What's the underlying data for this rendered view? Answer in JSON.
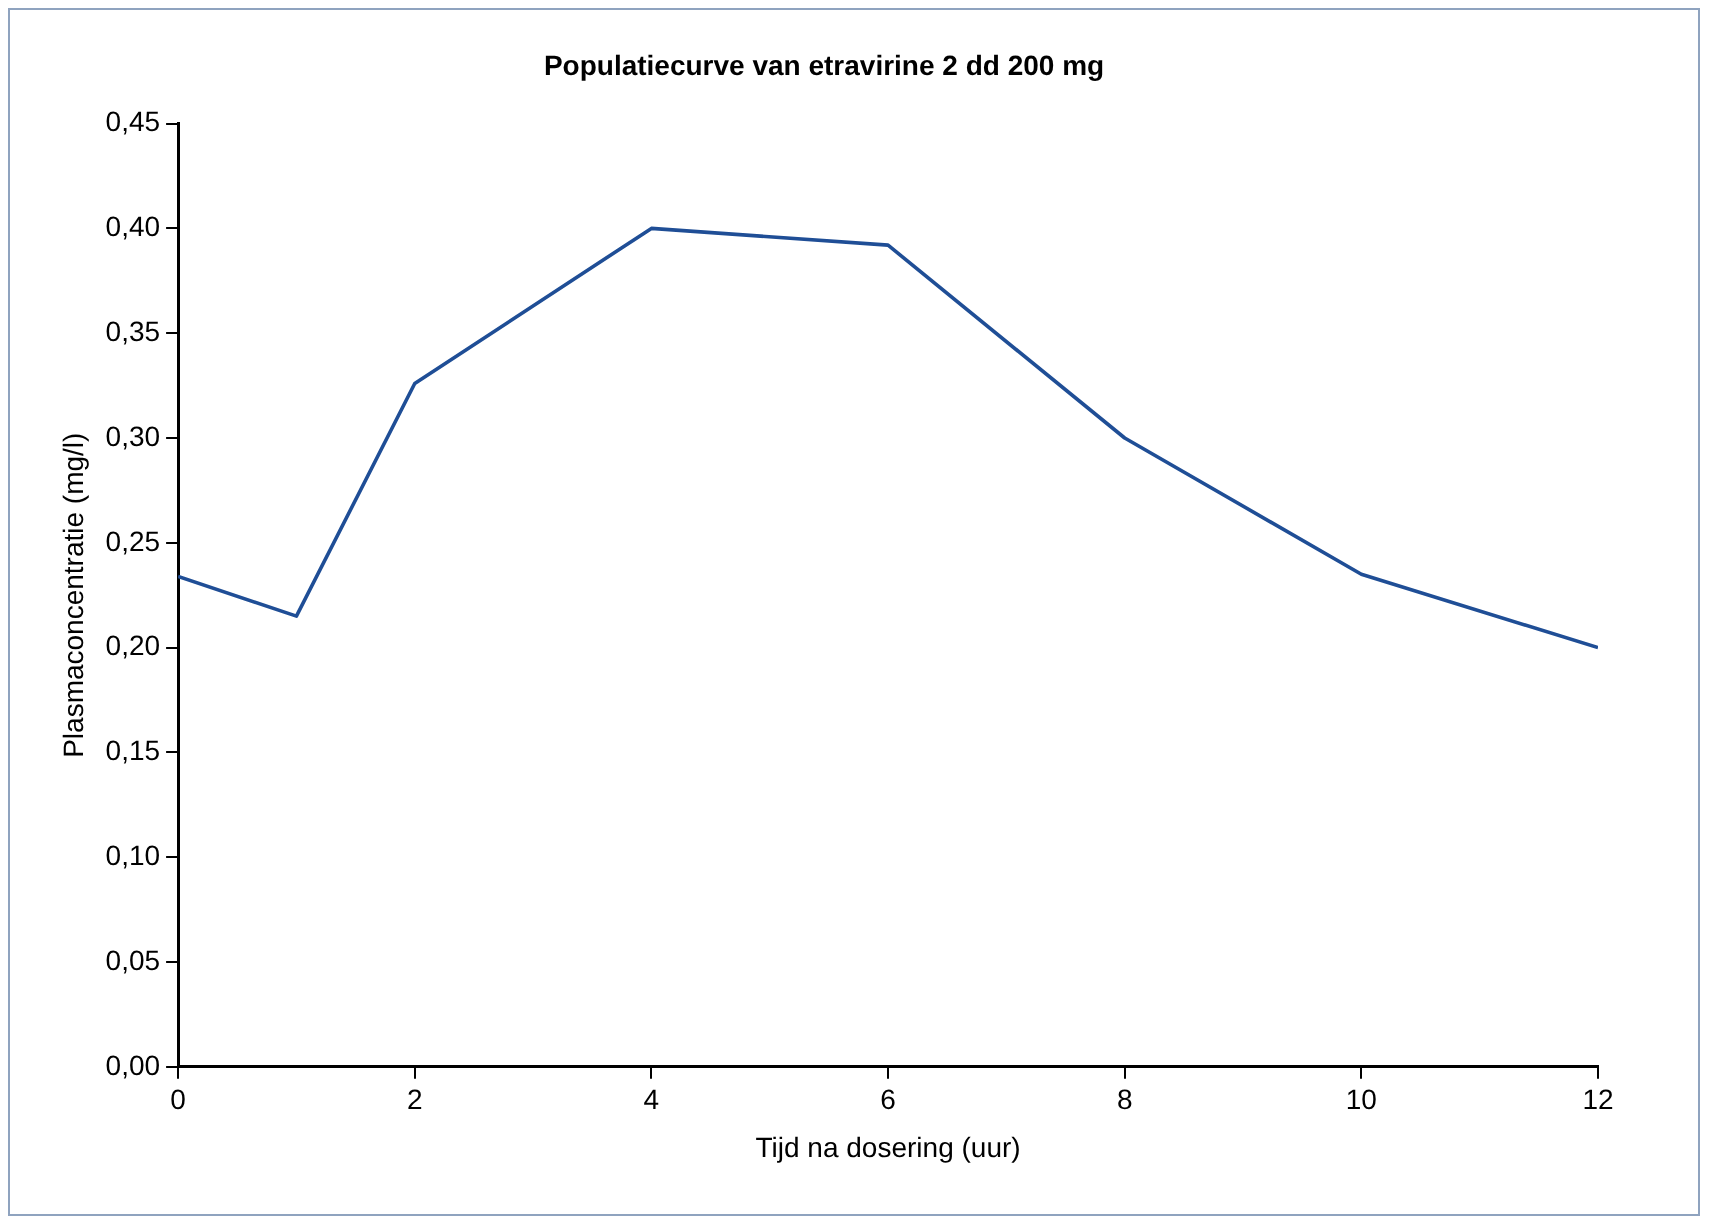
{
  "chart_data": {
    "type": "line",
    "title": "Populatiecurve van etravirine 2 dd 200 mg",
    "xlabel": "Tijd na dosering (uur)",
    "ylabel": "Plasmaconcentratie (mg/l)",
    "x": [
      0,
      1,
      2,
      4,
      6,
      8,
      10,
      12
    ],
    "series": [
      {
        "color": "#1f4e96",
        "values": [
          0.234,
          0.215,
          0.326,
          0.4,
          0.392,
          0.3,
          0.235,
          0.2
        ]
      }
    ],
    "xlim": [
      0,
      12
    ],
    "xticks": [
      0,
      2,
      4,
      6,
      8,
      10,
      12
    ],
    "ylim": [
      0,
      0.45
    ],
    "yticks": [
      {
        "value": 0,
        "label": "0,00"
      },
      {
        "value": 0.05,
        "label": "0,05"
      },
      {
        "value": 0.1,
        "label": "0,10"
      },
      {
        "value": 0.15,
        "label": "0,15"
      },
      {
        "value": 0.2,
        "label": "0,20"
      },
      {
        "value": 0.25,
        "label": "0,25"
      },
      {
        "value": 0.3,
        "label": "0,30"
      },
      {
        "value": 0.35,
        "label": "0,35"
      },
      {
        "value": 0.4,
        "label": "0,40"
      },
      {
        "value": 0.45,
        "label": "0,45"
      }
    ],
    "grid": false,
    "legend": false,
    "marker": "none",
    "line_style": "solid"
  }
}
